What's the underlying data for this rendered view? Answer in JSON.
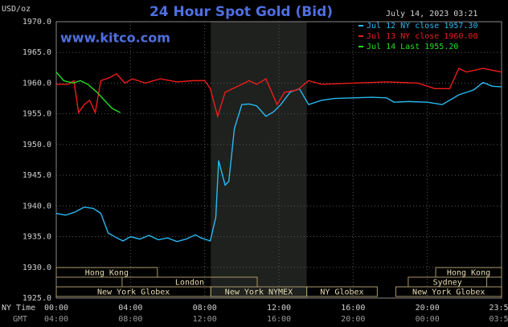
{
  "chart_data": {
    "type": "line",
    "title": "24 Hour Spot Gold (Bid)",
    "unit_label": "USD/oz",
    "timestamp": "July 14, 2023 03:21",
    "watermark": "www.kitco.com",
    "x_axis_label": "NY Time",
    "x2_axis_label": "GMT",
    "xlim": [
      0,
      24
    ],
    "ylim": [
      1925,
      1970
    ],
    "yticks": [
      {
        "value": 1925,
        "label": "1925.0"
      },
      {
        "value": 1930,
        "label": "1930.0"
      },
      {
        "value": 1935,
        "label": "1935.0"
      },
      {
        "value": 1940,
        "label": "1940.0"
      },
      {
        "value": 1945,
        "label": "1945.0"
      },
      {
        "value": 1950,
        "label": "1950.0"
      },
      {
        "value": 1955,
        "label": "1955.0"
      },
      {
        "value": 1960,
        "label": "1960.0"
      },
      {
        "value": 1965,
        "label": "1965.0"
      },
      {
        "value": 1970,
        "label": "1970.0"
      }
    ],
    "xticks": [
      {
        "value": 0,
        "label": "00:00"
      },
      {
        "value": 4,
        "label": "04:00"
      },
      {
        "value": 8,
        "label": "08:00"
      },
      {
        "value": 12,
        "label": "12:00"
      },
      {
        "value": 16,
        "label": "16:00"
      },
      {
        "value": 20,
        "label": "20:00"
      },
      {
        "value": 23.98,
        "label": "23:59"
      }
    ],
    "x2ticks": [
      {
        "value": 0,
        "label": "04:00"
      },
      {
        "value": 4,
        "label": "08:00"
      },
      {
        "value": 8,
        "label": "12:00"
      },
      {
        "value": 12,
        "label": "16:00"
      },
      {
        "value": 16,
        "label": "20:00"
      },
      {
        "value": 20,
        "label": "00:00"
      },
      {
        "value": 23.98,
        "label": "03:59"
      }
    ],
    "grid": true,
    "shaded_range": [
      8.33,
      13.5
    ],
    "sessions": [
      {
        "name": "Hong Kong",
        "row": 0,
        "start": 0,
        "end": 5.45
      },
      {
        "name": "Hong Kong",
        "row": 0,
        "start": 20.45,
        "end": 24
      },
      {
        "name": "London",
        "row": 1,
        "start": 3.55,
        "end": 10.83
      },
      {
        "name": "Sydney",
        "row": 1,
        "start": 18.97,
        "end": 23.2
      },
      {
        "name": "New York Globex",
        "row": 2,
        "start": 0,
        "end": 8.33
      },
      {
        "name": "New York NYMEX",
        "row": 2,
        "start": 8.33,
        "end": 13.5
      },
      {
        "name": "NY Globex",
        "row": 2,
        "start": 13.5,
        "end": 17.3
      },
      {
        "name": "New York Globex",
        "row": 2,
        "start": 18.3,
        "end": 24
      }
    ],
    "series": [
      {
        "name": "Jul 12 NY close 1957.30",
        "color": "#2ab8f0",
        "x": [
          0,
          0.5,
          1,
          1.5,
          2,
          2.4,
          2.8,
          3.2,
          3.6,
          4,
          4.5,
          5,
          5.5,
          6,
          6.5,
          7,
          7.5,
          7.8,
          8.3,
          8.6,
          8.75,
          9.1,
          9.3,
          9.6,
          10,
          10.4,
          10.8,
          11.3,
          11.7,
          12.1,
          12.6,
          13.1,
          13.6,
          14.3,
          15,
          16,
          17,
          17.8,
          18.2,
          19,
          20,
          20.8,
          21.7,
          22.5,
          23,
          23.5,
          24
        ],
        "values": [
          1938.8,
          1938.5,
          1939.0,
          1939.8,
          1939.6,
          1938.8,
          1935.6,
          1934.9,
          1934.3,
          1935.0,
          1934.6,
          1935.2,
          1934.5,
          1934.8,
          1934.2,
          1934.6,
          1935.3,
          1934.8,
          1934.3,
          1938.2,
          1947.4,
          1943.4,
          1944.0,
          1952.6,
          1956.5,
          1956.6,
          1956.3,
          1954.6,
          1955.3,
          1956.5,
          1958.5,
          1959.1,
          1956.5,
          1957.2,
          1957.5,
          1957.6,
          1957.7,
          1957.6,
          1956.9,
          1957.0,
          1956.9,
          1956.5,
          1958.1,
          1958.9,
          1960.1,
          1959.5,
          1959.4
        ]
      },
      {
        "name": "Jul 13 NY close 1960.00",
        "color": "#ee1c1c",
        "x": [
          0,
          0.65,
          0.95,
          1.2,
          1.5,
          1.8,
          2.1,
          2.4,
          2.8,
          3.25,
          3.7,
          4.1,
          4.8,
          5.6,
          6.5,
          7.4,
          8,
          8.3,
          8.7,
          9.1,
          9.5,
          10,
          10.4,
          10.8,
          11.3,
          11.9,
          12.3,
          13,
          13.6,
          14.3,
          16,
          17.8,
          19.5,
          20.4,
          21.2,
          21.7,
          22.1,
          23,
          24
        ],
        "values": [
          1959.8,
          1959.8,
          1960.4,
          1955.2,
          1956.5,
          1957.2,
          1955.2,
          1960.4,
          1960.8,
          1961.5,
          1960.0,
          1960.7,
          1960.0,
          1960.7,
          1960.2,
          1960.4,
          1960.4,
          1959.1,
          1954.6,
          1958.5,
          1959.1,
          1959.8,
          1960.4,
          1959.8,
          1960.7,
          1956.5,
          1958.5,
          1958.9,
          1960.4,
          1959.8,
          1960.0,
          1960.2,
          1960.0,
          1959.1,
          1959.1,
          1962.4,
          1961.8,
          1962.4,
          1961.8
        ]
      },
      {
        "name": "Jul 14 Last 1955.20",
        "color": "#22dd22",
        "x": [
          0,
          0.4,
          0.9,
          1.3,
          1.7,
          2.2,
          2.6,
          3,
          3.45
        ],
        "values": [
          1961.8,
          1960.4,
          1960.0,
          1960.4,
          1959.8,
          1958.5,
          1957.2,
          1955.9,
          1955.2
        ]
      }
    ]
  }
}
